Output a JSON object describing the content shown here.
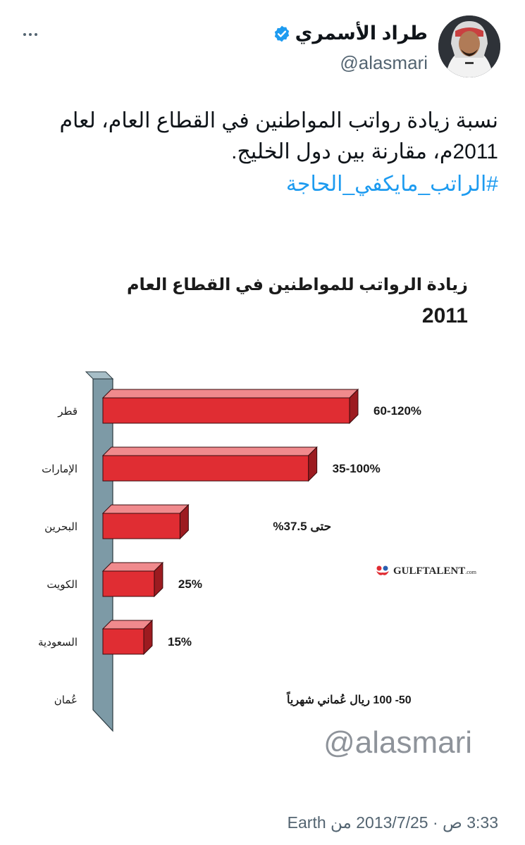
{
  "tweet": {
    "display_name": "طراد الأسمري",
    "handle": "@alasmari",
    "text": "نسبة زيادة رواتب المواطنين في القطاع العام، لعام 2011م، مقارنة بين دول الخليج.",
    "hashtag": "#الراتب_مايكفي_الحاجة",
    "timestamp": "3:33 ص · 2013/7/25 من Earth",
    "verified": true,
    "accent_color": "#1d9bf0"
  },
  "chart_data": {
    "type": "bar",
    "title": "زيادة الرواتب للمواطنين في القطاع العام",
    "year": "2011",
    "categories": [
      "قطر",
      "الإمارات",
      "البحرين",
      "الكويت",
      "السعودية",
      "عُمان"
    ],
    "values": [
      120,
      100,
      37.5,
      25,
      15,
      null
    ],
    "range_low": [
      60,
      35,
      null,
      null,
      null,
      null
    ],
    "data_labels": [
      "60-120%",
      "35-100%",
      "حتى 37.5%",
      "25%",
      "15%",
      "50- 100 ريال عُماني شهرياً"
    ],
    "bar_color": "#e02d33",
    "xlim": [
      0,
      125
    ],
    "source_logo": "GULFTALENT",
    "source_logo_suffix": ".com",
    "watermark": "@alasmari"
  }
}
